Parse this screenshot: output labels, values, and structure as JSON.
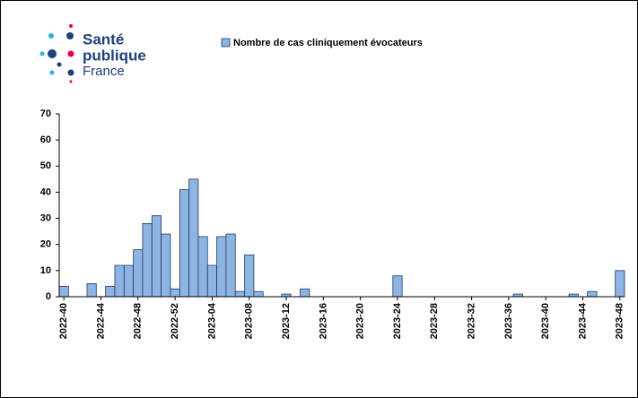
{
  "logo": {
    "line1": "Santé",
    "line2": "publique",
    "line3": "France"
  },
  "chart_data": {
    "type": "bar",
    "categories": [
      "2022-40",
      null,
      null,
      null,
      "2022-44",
      null,
      null,
      null,
      "2022-48",
      null,
      null,
      null,
      "2022-52",
      null,
      null,
      null,
      "2023-04",
      null,
      null,
      null,
      "2023-08",
      null,
      null,
      null,
      "2023-12",
      null,
      null,
      null,
      "2023-16",
      null,
      null,
      null,
      "2023-20",
      null,
      null,
      null,
      "2023-24",
      null,
      null,
      null,
      "2023-28",
      null,
      null,
      null,
      "2023-32",
      null,
      null,
      null,
      "2023-36",
      null,
      null,
      null,
      "2023-40",
      null,
      null,
      null,
      "2023-44",
      null,
      null,
      null,
      "2023-48"
    ],
    "series": [
      {
        "name": "Nombre de cas cliniquement évocateurs",
        "color": "#8db4e2",
        "values": [
          4,
          0,
          0,
          5,
          0,
          4,
          12,
          12,
          18,
          28,
          31,
          24,
          3,
          41,
          45,
          23,
          12,
          23,
          24,
          2,
          16,
          2,
          0,
          0,
          1,
          0,
          3,
          0,
          0,
          0,
          0,
          0,
          0,
          0,
          0,
          0,
          8,
          0,
          0,
          0,
          0,
          0,
          0,
          0,
          0,
          0,
          0,
          0,
          0,
          1,
          0,
          0,
          0,
          0,
          0,
          1,
          0,
          2,
          0,
          0,
          10
        ]
      }
    ],
    "ylim": [
      0,
      70
    ],
    "yticks": [
      0,
      10,
      20,
      30,
      40,
      50,
      60,
      70
    ],
    "grid": false,
    "legend": "top"
  }
}
